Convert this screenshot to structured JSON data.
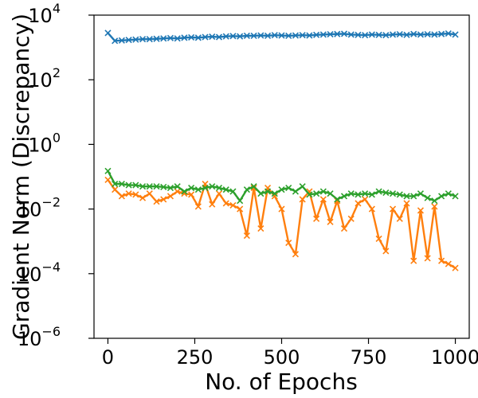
{
  "chart_data": {
    "type": "line",
    "title": "",
    "xlabel": "No. of Epochs",
    "ylabel": "Gradient Norm (Discrepancy)",
    "xlim": [
      -40,
      1040
    ],
    "ylim": [
      1e-06,
      10000.0
    ],
    "yscale": "log",
    "grid": false,
    "legend": "none",
    "marker": "x",
    "x_ticks": [
      {
        "value": 0,
        "label": "0"
      },
      {
        "value": 250,
        "label": "250"
      },
      {
        "value": 500,
        "label": "500"
      },
      {
        "value": 750,
        "label": "750"
      },
      {
        "value": 1000,
        "label": "1000"
      }
    ],
    "y_ticks": [
      {
        "value": 10000.0,
        "base": "10",
        "exp": "4"
      },
      {
        "value": 100.0,
        "base": "10",
        "exp": "2"
      },
      {
        "value": 1.0,
        "base": "10",
        "exp": "0"
      },
      {
        "value": 0.01,
        "base": "10",
        "exp": "−2"
      },
      {
        "value": 0.0001,
        "base": "10",
        "exp": "−4"
      },
      {
        "value": 1e-06,
        "base": "10",
        "exp": "−6"
      }
    ],
    "x": [
      0,
      20,
      40,
      60,
      80,
      100,
      120,
      140,
      160,
      180,
      200,
      220,
      240,
      260,
      280,
      300,
      320,
      340,
      360,
      380,
      400,
      420,
      440,
      460,
      480,
      500,
      520,
      540,
      560,
      580,
      600,
      620,
      640,
      660,
      680,
      700,
      720,
      740,
      760,
      780,
      800,
      820,
      840,
      860,
      880,
      900,
      920,
      940,
      960,
      980,
      1000
    ],
    "series": [
      {
        "color": "#1f77b4",
        "values": [
          2800,
          1600,
          1650,
          1700,
          1750,
          1800,
          1800,
          1850,
          1900,
          1950,
          1900,
          2000,
          2050,
          2000,
          2100,
          2150,
          2100,
          2200,
          2250,
          2200,
          2300,
          2300,
          2350,
          2300,
          2400,
          2350,
          2300,
          2350,
          2400,
          2350,
          2450,
          2500,
          2550,
          2600,
          2650,
          2500,
          2450,
          2400,
          2500,
          2450,
          2400,
          2500,
          2550,
          2450,
          2600,
          2500,
          2550,
          2500,
          2600,
          2700,
          2500
        ]
      },
      {
        "color": "#ff7f0e",
        "values": [
          0.08,
          0.04,
          0.025,
          0.03,
          0.028,
          0.022,
          0.03,
          0.017,
          0.02,
          0.025,
          0.035,
          0.03,
          0.028,
          0.012,
          0.06,
          0.014,
          0.03,
          0.015,
          0.013,
          0.01,
          0.0015,
          0.045,
          0.0025,
          0.045,
          0.025,
          0.01,
          0.0009,
          0.0004,
          0.02,
          0.035,
          0.005,
          0.02,
          0.004,
          0.018,
          0.0025,
          0.005,
          0.015,
          0.02,
          0.01,
          0.0012,
          0.0005,
          0.01,
          0.005,
          0.015,
          0.00025,
          0.009,
          0.0003,
          0.012,
          0.00025,
          0.0002,
          0.00015
        ]
      },
      {
        "color": "#2ca02c",
        "values": [
          0.15,
          0.06,
          0.06,
          0.055,
          0.055,
          0.05,
          0.05,
          0.05,
          0.048,
          0.045,
          0.05,
          0.035,
          0.045,
          0.04,
          0.045,
          0.05,
          0.045,
          0.04,
          0.035,
          0.018,
          0.04,
          0.05,
          0.03,
          0.035,
          0.03,
          0.04,
          0.045,
          0.035,
          0.05,
          0.028,
          0.03,
          0.035,
          0.03,
          0.02,
          0.025,
          0.03,
          0.028,
          0.03,
          0.028,
          0.035,
          0.032,
          0.03,
          0.028,
          0.025,
          0.025,
          0.03,
          0.022,
          0.018,
          0.025,
          0.03,
          0.025
        ]
      }
    ]
  }
}
